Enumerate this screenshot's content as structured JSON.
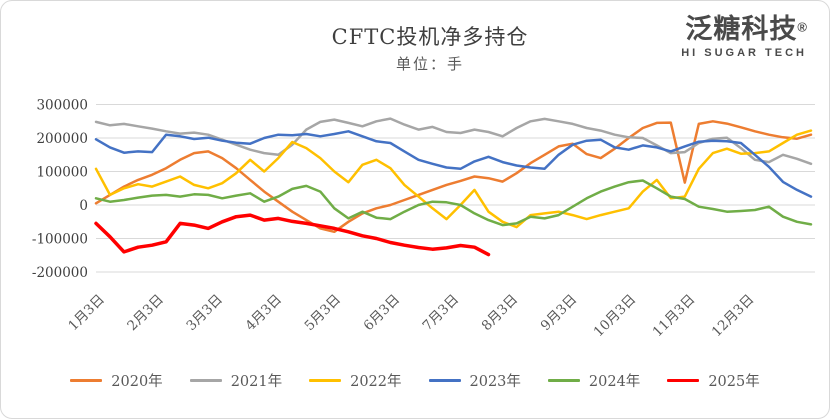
{
  "header": {
    "title": "CFTC投机净多持仓",
    "subtitle": "单位：手"
  },
  "logo": {
    "name": "泛糖科技",
    "registered_mark": "®",
    "tagline": "HI SUGAR TECH"
  },
  "colors": {
    "grid": "#d9d9d9",
    "title_text": "#3f3f3f",
    "subtitle_text": "#595959",
    "axis_text": "#404040"
  },
  "chart_data": {
    "type": "line",
    "title": "CFTC投机净多持仓",
    "unit_label": "单位：手",
    "xlabel": "",
    "ylabel": "",
    "ylim": [
      -200000,
      300000
    ],
    "y_ticks": [
      300000,
      200000,
      100000,
      0,
      -100000,
      -200000
    ],
    "x_tick_labels": [
      "1月3日",
      "2月3日",
      "3月3日",
      "4月3日",
      "5月3日",
      "6月3日",
      "7月3日",
      "8月3日",
      "9月3日",
      "10月3日",
      "11月3日",
      "12月3日"
    ],
    "x_unit": "week",
    "grid": "horizontal",
    "legend_position": "bottom",
    "series": [
      {
        "name": "2020年",
        "color": "#ED7D31",
        "line_width": 2.5,
        "values": [
          5000,
          30000,
          55000,
          75000,
          90000,
          110000,
          135000,
          155000,
          160000,
          140000,
          110000,
          75000,
          40000,
          10000,
          -20000,
          -45000,
          -70000,
          -80000,
          -50000,
          -25000,
          -10000,
          0,
          15000,
          30000,
          45000,
          60000,
          72000,
          85000,
          80000,
          70000,
          95000,
          125000,
          150000,
          175000,
          183000,
          152000,
          140000,
          168000,
          200000,
          230000,
          245000,
          246000,
          67000,
          242000,
          250000,
          243000,
          232000,
          220000,
          210000,
          202000,
          198000,
          210000
        ]
      },
      {
        "name": "2021年",
        "color": "#A6A6A6",
        "line_width": 2.5,
        "values": [
          248000,
          238000,
          242000,
          235000,
          228000,
          220000,
          213000,
          216000,
          210000,
          195000,
          180000,
          165000,
          155000,
          150000,
          180000,
          225000,
          248000,
          255000,
          245000,
          235000,
          250000,
          258000,
          240000,
          225000,
          233000,
          218000,
          215000,
          225000,
          218000,
          205000,
          230000,
          250000,
          257000,
          250000,
          242000,
          230000,
          222000,
          210000,
          202000,
          200000,
          178000,
          155000,
          158000,
          185000,
          198000,
          201000,
          170000,
          135000,
          128000,
          150000,
          138000,
          123000
        ]
      },
      {
        "name": "2022年",
        "color": "#FFC000",
        "line_width": 2.5,
        "values": [
          108000,
          30000,
          50000,
          62000,
          55000,
          70000,
          85000,
          60000,
          50000,
          65000,
          95000,
          135000,
          100000,
          140000,
          188000,
          170000,
          140000,
          100000,
          68000,
          120000,
          135000,
          110000,
          60000,
          25000,
          -10000,
          -42000,
          0,
          45000,
          -20000,
          -50000,
          -66000,
          -30000,
          -25000,
          -20000,
          -30000,
          -42000,
          -30000,
          -20000,
          -10000,
          40000,
          75000,
          20000,
          25000,
          108000,
          155000,
          168000,
          153000,
          155000,
          160000,
          185000,
          210000,
          222000
        ]
      },
      {
        "name": "2023年",
        "color": "#4472C4",
        "line_width": 2.5,
        "values": [
          196000,
          172000,
          156000,
          160000,
          158000,
          210000,
          205000,
          197000,
          201000,
          192000,
          186000,
          183000,
          200000,
          210000,
          208000,
          212000,
          205000,
          212000,
          220000,
          205000,
          190000,
          185000,
          160000,
          135000,
          123000,
          112000,
          108000,
          130000,
          144000,
          128000,
          118000,
          112000,
          108000,
          150000,
          180000,
          192000,
          195000,
          172000,
          165000,
          178000,
          172000,
          160000,
          175000,
          189000,
          192000,
          190000,
          185000,
          150000,
          114000,
          69000,
          45000,
          25000
        ]
      },
      {
        "name": "2024年",
        "color": "#70AD47",
        "line_width": 2.5,
        "values": [
          20000,
          10000,
          15000,
          22000,
          28000,
          30000,
          25000,
          32000,
          30000,
          20000,
          28000,
          35000,
          10000,
          25000,
          48000,
          57000,
          40000,
          -10000,
          -40000,
          -20000,
          -38000,
          -42000,
          -20000,
          0,
          10000,
          8000,
          0,
          -25000,
          -45000,
          -60000,
          -55000,
          -35000,
          -40000,
          -30000,
          -5000,
          20000,
          40000,
          55000,
          68000,
          73000,
          50000,
          25000,
          18000,
          -5000,
          -12000,
          -20000,
          -18000,
          -15000,
          -5000,
          -35000,
          -50000,
          -58000
        ]
      },
      {
        "name": "2025年",
        "color": "#FF0000",
        "line_width": 3.5,
        "values": [
          -55000,
          -95000,
          -140000,
          -126000,
          -120000,
          -110000,
          -55000,
          -60000,
          -70000,
          -50000,
          -35000,
          -30000,
          -45000,
          -40000,
          -49000,
          -55000,
          -62000,
          -70000,
          -80000,
          -92000,
          -100000,
          -112000,
          -120000,
          -127000,
          -132000,
          -128000,
          -121000,
          -126000,
          -148000
        ]
      }
    ]
  }
}
